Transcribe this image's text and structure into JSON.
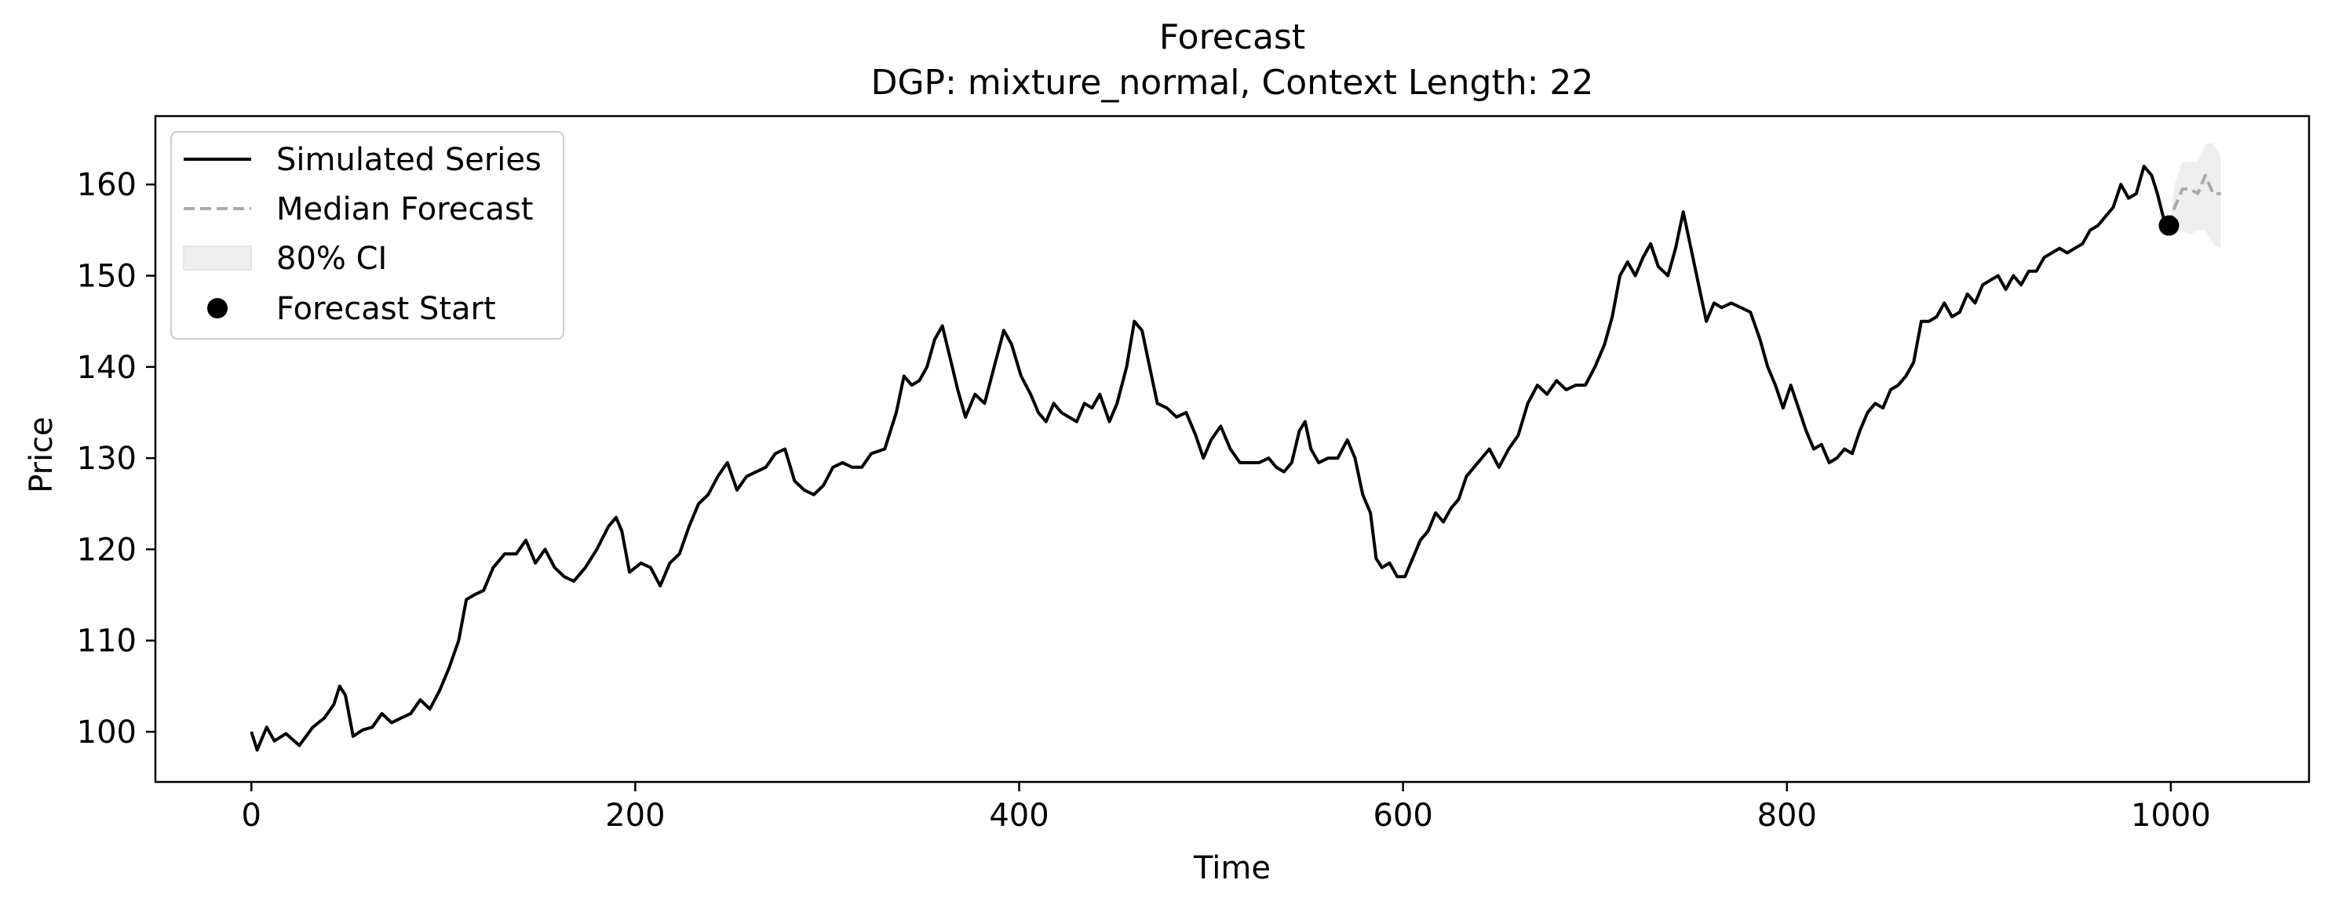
{
  "chart_data": {
    "type": "line",
    "title": "Forecast",
    "subtitle": "DGP: mixture_normal, Context Length: 22",
    "xlabel": "Time",
    "ylabel": "Price",
    "xlim": [
      -50,
      1072
    ],
    "ylim": [
      94.5,
      167.5
    ],
    "xticks": [
      0,
      200,
      400,
      600,
      800,
      1000
    ],
    "yticks": [
      100,
      110,
      120,
      130,
      140,
      150,
      160
    ],
    "grid": false,
    "legend_position": "top-left",
    "legend": [
      {
        "label": "Simulated Series",
        "kind": "line"
      },
      {
        "label": "Median Forecast",
        "kind": "dashed"
      },
      {
        "label": "80% CI",
        "kind": "patch"
      },
      {
        "label": "Forecast Start",
        "kind": "marker"
      }
    ],
    "series": [
      {
        "name": "Simulated Series",
        "color": "#000000",
        "points": [
          [
            0,
            100
          ],
          [
            3,
            98
          ],
          [
            8,
            100.5
          ],
          [
            12,
            99
          ],
          [
            18,
            99.8
          ],
          [
            25,
            98.5
          ],
          [
            32,
            100.5
          ],
          [
            38,
            101.5
          ],
          [
            43,
            103
          ],
          [
            46,
            105
          ],
          [
            49,
            104
          ],
          [
            53,
            99.5
          ],
          [
            58,
            100.2
          ],
          [
            63,
            100.5
          ],
          [
            68,
            102
          ],
          [
            73,
            101
          ],
          [
            78,
            101.5
          ],
          [
            83,
            102
          ],
          [
            88,
            103.5
          ],
          [
            93,
            102.5
          ],
          [
            98,
            104.5
          ],
          [
            103,
            107
          ],
          [
            108,
            110
          ],
          [
            112,
            114.5
          ],
          [
            116,
            115
          ],
          [
            121,
            115.5
          ],
          [
            126,
            118
          ],
          [
            132,
            119.5
          ],
          [
            138,
            119.5
          ],
          [
            143,
            121
          ],
          [
            148,
            118.5
          ],
          [
            153,
            120
          ],
          [
            158,
            118
          ],
          [
            163,
            117
          ],
          [
            168,
            116.5
          ],
          [
            174,
            118
          ],
          [
            180,
            120
          ],
          [
            186,
            122.5
          ],
          [
            190,
            123.5
          ],
          [
            193,
            122
          ],
          [
            197,
            117.5
          ],
          [
            203,
            118.5
          ],
          [
            208,
            118
          ],
          [
            213,
            116
          ],
          [
            218,
            118.5
          ],
          [
            223,
            119.5
          ],
          [
            228,
            122.5
          ],
          [
            233,
            125
          ],
          [
            238,
            126
          ],
          [
            243,
            128
          ],
          [
            248,
            129.5
          ],
          [
            253,
            126.5
          ],
          [
            258,
            128
          ],
          [
            263,
            128.5
          ],
          [
            268,
            129
          ],
          [
            273,
            130.5
          ],
          [
            278,
            131
          ],
          [
            283,
            127.5
          ],
          [
            288,
            126.5
          ],
          [
            293,
            126
          ],
          [
            298,
            127
          ],
          [
            303,
            129
          ],
          [
            308,
            129.5
          ],
          [
            313,
            129
          ],
          [
            318,
            129
          ],
          [
            323,
            130.5
          ],
          [
            330,
            131
          ],
          [
            336,
            135
          ],
          [
            340,
            139
          ],
          [
            344,
            138
          ],
          [
            348,
            138.5
          ],
          [
            352,
            140
          ],
          [
            356,
            143
          ],
          [
            360,
            144.5
          ],
          [
            364,
            141
          ],
          [
            368,
            137.5
          ],
          [
            372,
            134.5
          ],
          [
            377,
            137
          ],
          [
            382,
            136
          ],
          [
            387,
            140
          ],
          [
            392,
            144
          ],
          [
            396,
            142.5
          ],
          [
            401,
            139
          ],
          [
            406,
            137
          ],
          [
            410,
            135
          ],
          [
            414,
            134
          ],
          [
            418,
            136
          ],
          [
            422,
            135
          ],
          [
            426,
            134.5
          ],
          [
            430,
            134
          ],
          [
            434,
            136
          ],
          [
            438,
            135.5
          ],
          [
            442,
            137
          ],
          [
            447,
            134
          ],
          [
            451,
            136
          ],
          [
            456,
            140
          ],
          [
            460,
            145
          ],
          [
            464,
            144
          ],
          [
            468,
            140
          ],
          [
            472,
            136
          ],
          [
            477,
            135.5
          ],
          [
            482,
            134.5
          ],
          [
            487,
            135
          ],
          [
            492,
            132.5
          ],
          [
            496,
            130
          ],
          [
            500,
            132
          ],
          [
            505,
            133.5
          ],
          [
            510,
            131
          ],
          [
            515,
            129.5
          ],
          [
            520,
            129.5
          ],
          [
            525,
            129.5
          ],
          [
            530,
            130
          ],
          [
            534,
            129
          ],
          [
            538,
            128.5
          ],
          [
            542,
            129.5
          ],
          [
            546,
            133
          ],
          [
            549,
            134
          ],
          [
            552,
            131
          ],
          [
            556,
            129.5
          ],
          [
            561,
            130
          ],
          [
            566,
            130
          ],
          [
            571,
            132
          ],
          [
            575,
            130
          ],
          [
            579,
            126
          ],
          [
            583,
            124
          ],
          [
            586,
            119
          ],
          [
            589,
            118
          ],
          [
            593,
            118.5
          ],
          [
            597,
            117
          ],
          [
            601,
            117
          ],
          [
            605,
            119
          ],
          [
            609,
            121
          ],
          [
            613,
            122
          ],
          [
            617,
            124
          ],
          [
            621,
            123
          ],
          [
            625,
            124.5
          ],
          [
            629,
            125.5
          ],
          [
            633,
            128
          ],
          [
            637,
            129
          ],
          [
            641,
            130
          ],
          [
            645,
            131
          ],
          [
            650,
            129
          ],
          [
            655,
            131
          ],
          [
            660,
            132.5
          ],
          [
            665,
            136
          ],
          [
            670,
            138
          ],
          [
            675,
            137
          ],
          [
            680,
            138.5
          ],
          [
            685,
            137.5
          ],
          [
            690,
            138
          ],
          [
            695,
            138
          ],
          [
            700,
            140
          ],
          [
            705,
            142.5
          ],
          [
            709,
            145.5
          ],
          [
            713,
            150
          ],
          [
            717,
            151.5
          ],
          [
            721,
            150
          ],
          [
            725,
            152
          ],
          [
            729,
            153.5
          ],
          [
            733,
            151
          ],
          [
            738,
            150
          ],
          [
            742,
            153
          ],
          [
            746,
            157
          ],
          [
            750,
            153
          ],
          [
            754,
            149
          ],
          [
            758,
            145
          ],
          [
            762,
            147
          ],
          [
            766,
            146.5
          ],
          [
            771,
            147
          ],
          [
            776,
            146.5
          ],
          [
            781,
            146
          ],
          [
            786,
            143
          ],
          [
            790,
            140
          ],
          [
            794,
            138
          ],
          [
            798,
            135.5
          ],
          [
            802,
            138
          ],
          [
            806,
            135.5
          ],
          [
            810,
            133
          ],
          [
            814,
            131
          ],
          [
            818,
            131.5
          ],
          [
            822,
            129.5
          ],
          [
            826,
            130
          ],
          [
            830,
            131
          ],
          [
            834,
            130.5
          ],
          [
            838,
            133
          ],
          [
            842,
            135
          ],
          [
            846,
            136
          ],
          [
            850,
            135.5
          ],
          [
            854,
            137.5
          ],
          [
            858,
            138
          ],
          [
            862,
            139
          ],
          [
            866,
            140.5
          ],
          [
            870,
            145
          ],
          [
            874,
            145
          ],
          [
            878,
            145.5
          ],
          [
            882,
            147
          ],
          [
            886,
            145.5
          ],
          [
            890,
            146
          ],
          [
            894,
            148
          ],
          [
            898,
            147
          ],
          [
            902,
            149
          ],
          [
            906,
            149.5
          ],
          [
            910,
            150
          ],
          [
            914,
            148.5
          ],
          [
            918,
            150
          ],
          [
            922,
            149
          ],
          [
            926,
            150.5
          ],
          [
            930,
            150.5
          ],
          [
            934,
            152
          ],
          [
            938,
            152.5
          ],
          [
            942,
            153
          ],
          [
            946,
            152.5
          ],
          [
            950,
            153
          ],
          [
            954,
            153.5
          ],
          [
            958,
            155
          ],
          [
            962,
            155.5
          ],
          [
            966,
            156.5
          ],
          [
            970,
            157.5
          ],
          [
            974,
            160
          ],
          [
            978,
            158.5
          ],
          [
            982,
            159
          ],
          [
            986,
            162
          ],
          [
            990,
            161
          ],
          [
            993,
            159
          ],
          [
            996,
            156.5
          ],
          [
            999,
            155.5
          ]
        ]
      },
      {
        "name": "Median Forecast",
        "color": "#aaaaaa",
        "points": [
          [
            999,
            155.5
          ],
          [
            1002,
            157.5
          ],
          [
            1006,
            159.5
          ],
          [
            1010,
            159.5
          ],
          [
            1014,
            159
          ],
          [
            1018,
            161
          ],
          [
            1022,
            159
          ],
          [
            1026,
            159
          ]
        ]
      }
    ],
    "ci_80": {
      "color": "#eeeeee",
      "x": [
        999,
        1002,
        1006,
        1010,
        1014,
        1018,
        1022,
        1026
      ],
      "lower": [
        155.5,
        155,
        155,
        154.5,
        155,
        155,
        153.5,
        153
      ],
      "upper": [
        155.5,
        160,
        162.5,
        162.5,
        162.5,
        164.5,
        164.5,
        163
      ]
    },
    "forecast_start": {
      "x": 999,
      "y": 155.5,
      "color": "#000000"
    }
  }
}
